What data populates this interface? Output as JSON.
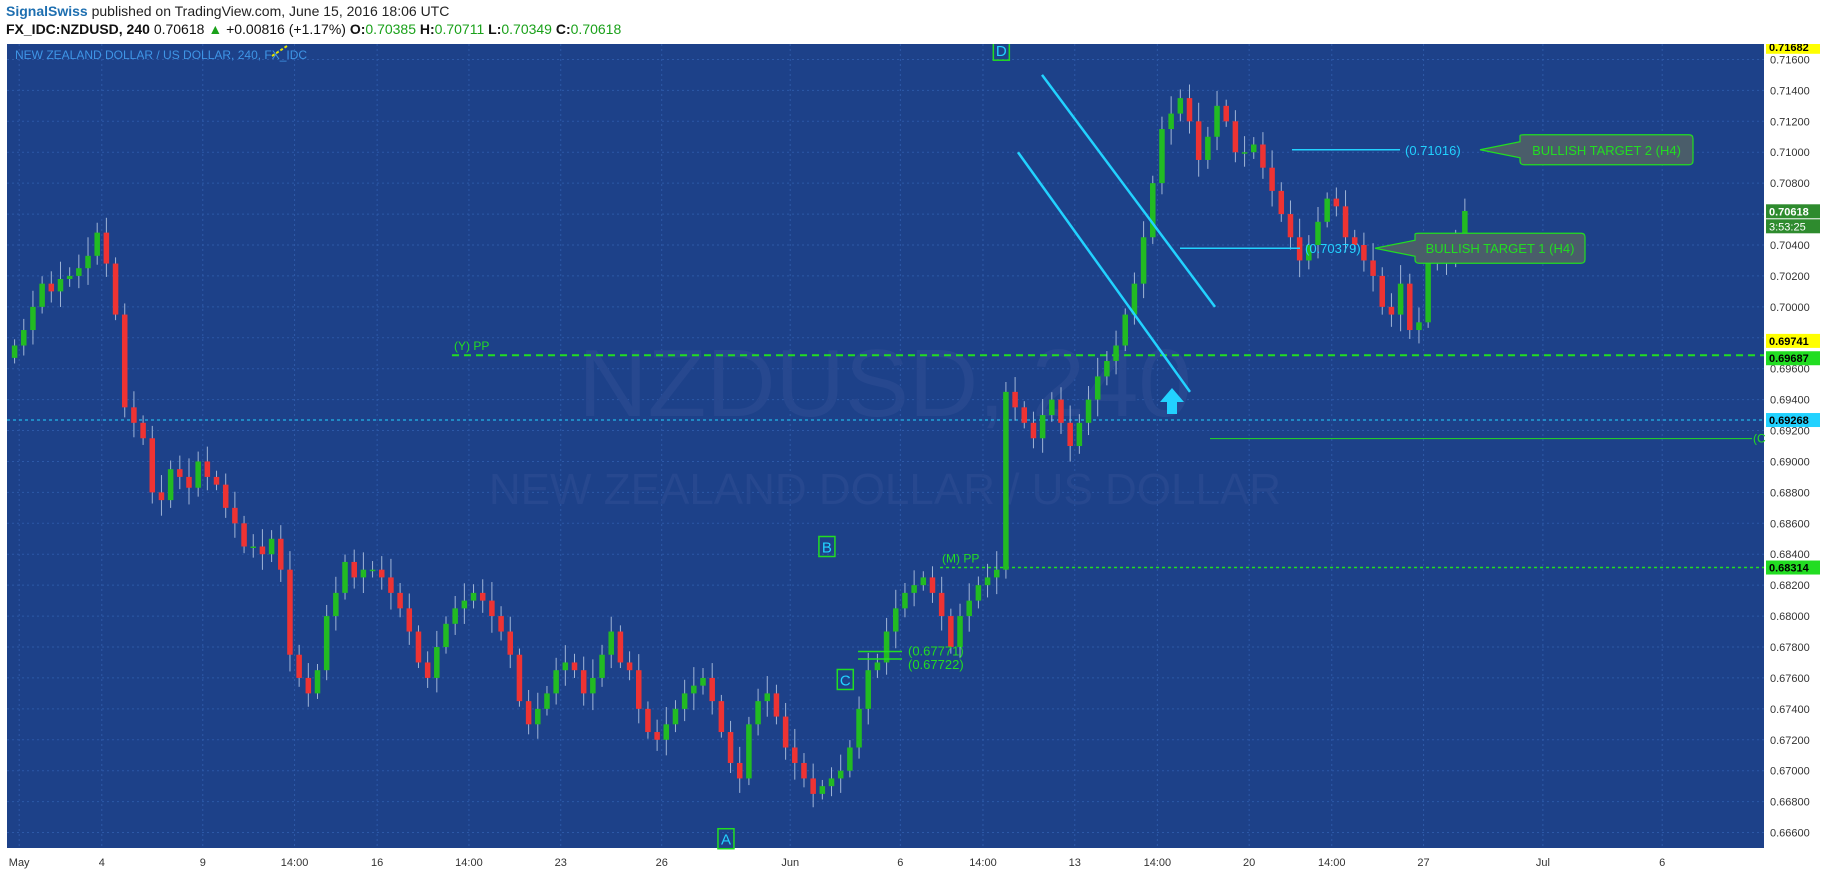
{
  "header": {
    "author": "SignalSwiss",
    "published": "published on TradingView.com, June 15, 2016 18:06 UTC",
    "symbol": "FX_IDC:NZDUSD, 240",
    "last": "0.70618",
    "change": "+0.00816 (+1.17%)",
    "o_label": "O:",
    "o": "0.70385",
    "h_label": "H:",
    "h": "0.70711",
    "l_label": "L:",
    "l": "0.70349",
    "c_label": "C:",
    "c": "0.70618"
  },
  "colors": {
    "bg": "#1d4189",
    "grid": "#2d59a8",
    "up": "#22bb22",
    "down": "#ee3333",
    "wick": "#9fb4d6",
    "cyan": "#22d2ff",
    "green": "#22dd22"
  },
  "chart_data": {
    "type": "candlestick",
    "title": "NEW ZEALAND DOLLAR / US DOLLAR, 240, FX_IDC",
    "watermark_symbol": "NZDUSD, 240",
    "watermark_name": "NEW ZEALAND DOLLAR / US DOLLAR",
    "xlim": [
      0,
      190
    ],
    "ylim": [
      0.665,
      0.717
    ],
    "y_ticks": [
      "0.71600",
      "0.71400",
      "0.71200",
      "0.71000",
      "0.70800",
      "0.70600",
      "0.70400",
      "0.70200",
      "0.70000",
      "0.69800",
      "0.69600",
      "0.69400",
      "0.69200",
      "0.69000",
      "0.68800",
      "0.68600",
      "0.68400",
      "0.68200",
      "0.68000",
      "0.67800",
      "0.67600",
      "0.67400",
      "0.67200",
      "0.67000",
      "0.66800",
      "0.66600"
    ],
    "x_ticks": [
      {
        "i": 1,
        "label": "May"
      },
      {
        "i": 10,
        "label": "4"
      },
      {
        "i": 21,
        "label": "9"
      },
      {
        "i": 31,
        "label": "14:00"
      },
      {
        "i": 40,
        "label": "16"
      },
      {
        "i": 50,
        "label": "14:00"
      },
      {
        "i": 60,
        "label": "23"
      },
      {
        "i": 71,
        "label": "26"
      },
      {
        "i": 85,
        "label": "Jun"
      },
      {
        "i": 97,
        "label": "6"
      },
      {
        "i": 106,
        "label": "14:00"
      },
      {
        "i": 116,
        "label": "13"
      },
      {
        "i": 125,
        "label": "14:00"
      },
      {
        "i": 135,
        "label": "20"
      },
      {
        "i": 144,
        "label": "14:00"
      },
      {
        "i": 154,
        "label": "27"
      },
      {
        "i": 167,
        "label": "Jul"
      },
      {
        "i": 180,
        "label": "6"
      }
    ],
    "price_tags": {
      "top": "0.71682",
      "last": "0.70618",
      "countdown": "3:53:25",
      "yellow": "0.69741",
      "ypp": "0.69687",
      "cyan": "0.69268",
      "mpp": "0.68314"
    },
    "levels": {
      "ypp_label": "(Y) PP",
      "mpp_label": "(M) PP",
      "line_0_69148_label": "(C"
    },
    "targets": [
      {
        "value_label": "(0.71016)",
        "text": "BULLISH TARGET 2 (H4)",
        "price": 0.71016
      },
      {
        "value_label": "(0.70379)",
        "text": "BULLISH TARGET 1 (H4)",
        "price": 0.70379
      }
    ],
    "c_levels": [
      "(0.67771)",
      "(0.67722)"
    ],
    "wave_labels": [
      {
        "text": "A",
        "i": 78,
        "price": 0.6656
      },
      {
        "text": "B",
        "i": 89,
        "price": 0.6845
      },
      {
        "text": "C",
        "i": 91,
        "price": 0.6759
      },
      {
        "text": "D",
        "i": 108,
        "price": 0.7166
      }
    ],
    "closes": [
      0.6975,
      0.6985,
      0.7,
      0.7015,
      0.701,
      0.7018,
      0.702,
      0.7025,
      0.7033,
      0.7048,
      0.7028,
      0.6995,
      0.6935,
      0.6925,
      0.6915,
      0.688,
      0.6875,
      0.6895,
      0.689,
      0.6883,
      0.69,
      0.689,
      0.6885,
      0.687,
      0.686,
      0.6845,
      0.6845,
      0.684,
      0.685,
      0.683,
      0.6775,
      0.676,
      0.675,
      0.6765,
      0.68,
      0.6815,
      0.6835,
      0.6825,
      0.683,
      0.683,
      0.6825,
      0.6815,
      0.6805,
      0.679,
      0.677,
      0.676,
      0.678,
      0.6795,
      0.6805,
      0.681,
      0.6815,
      0.681,
      0.68,
      0.679,
      0.6775,
      0.6745,
      0.673,
      0.674,
      0.675,
      0.6765,
      0.677,
      0.6765,
      0.675,
      0.676,
      0.6775,
      0.679,
      0.677,
      0.6765,
      0.674,
      0.6725,
      0.672,
      0.673,
      0.674,
      0.675,
      0.6755,
      0.676,
      0.6745,
      0.6725,
      0.6705,
      0.6695,
      0.673,
      0.6745,
      0.675,
      0.6735,
      0.6715,
      0.6705,
      0.6695,
      0.6685,
      0.669,
      0.6695,
      0.67,
      0.6715,
      0.674,
      0.6765,
      0.677,
      0.679,
      0.6805,
      0.6815,
      0.682,
      0.6825,
      0.6815,
      0.68,
      0.678,
      0.68,
      0.681,
      0.682,
      0.6825,
      0.683,
      0.6945,
      0.6935,
      0.6925,
      0.6915,
      0.693,
      0.694,
      0.6925,
      0.691,
      0.6925,
      0.694,
      0.6955,
      0.6965,
      0.6975,
      0.6995,
      0.7015,
      0.7045,
      0.708,
      0.7115,
      0.7125,
      0.7135,
      0.712,
      0.7095,
      0.711,
      0.713,
      0.712,
      0.71,
      0.71,
      0.7105,
      0.709,
      0.7075,
      0.706,
      0.7045,
      0.703,
      0.704,
      0.7055,
      0.707,
      0.7065,
      0.7045,
      0.704,
      0.703,
      0.702,
      0.7,
      0.6995,
      0.7015,
      0.6985,
      0.699,
      0.703,
      0.7035,
      0.703,
      0.7045,
      0.7062
    ],
    "candle_start_index": 0
  }
}
